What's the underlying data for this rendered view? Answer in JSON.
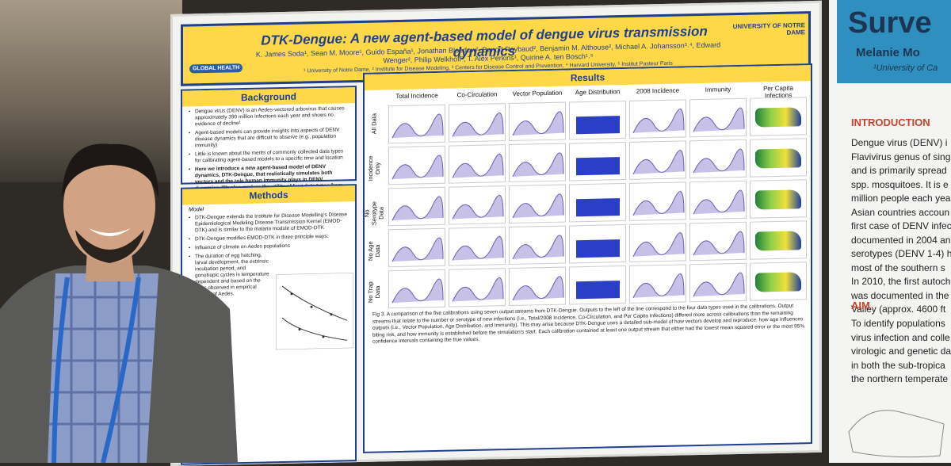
{
  "poster": {
    "title": "DTK-Dengue: A new agent-based model of dengue virus transmission dynamics",
    "authors": "K. James Soda¹, Sean M. Moore¹, Guido España¹, Jonathan Bloedow², Benoît Raybaud², Benjamin M. Althouse², Michael A. Johansson³˒⁴, Edward Wenger², Philip Welkhoff², T. Alex Perkins¹, Quirine A. ten Bosch¹˒⁵",
    "affiliations": "¹ University of Notre Dame, ² Institute for Disease Modeling, ³ Centers for Disease Control and Prevention, ⁴ Harvard University, ⁵ Institut Pasteur Paris",
    "logo_left": "GLOBAL HEALTH",
    "logo_right": "UNIVERSITY OF NOTRE DAME",
    "background": {
      "heading": "Background",
      "bullets": [
        "Dengue virus (DENV) is an Aedes-vectored arbovirus that causes approximately 390 million infections each year and shows no evidence of decline¹",
        "Agent-based models can provide insights into aspects of DENV disease dynamics that are difficult to observe (e.g., population immunity)",
        "Little is known about the merits of commonly collected data types for calibrating agent-based models to a specific time and location",
        "Here we introduce a new agent-based model of DENV dynamics, DTK-Dengue, that realistically simulates both vectors and the role human immunity plays in DENV dynamics. We also explore the utility of four data types from routine surveillance to calibrate the model."
      ]
    },
    "methods": {
      "heading": "Methods",
      "subheading": "Model",
      "bullets": [
        "DTK-Dengue extends the Institute for Disease Modelling's Disease Epidemiological Modeling Disease Transmission Kernel (EMOD-DTK) and is similar to the malaria module of EMOD-DTK",
        "DTK-Dengue modifies EMOD-DTK in three principle ways:",
        "Influence of climate on Aedes populations",
        "The duration of egg hatching, larval development, the extrinsic incubation period, and gonotropic cycles is temperature dependent and based on the rates observed in empirical studies of Aedes."
      ]
    },
    "results": {
      "heading": "Results",
      "columns": [
        "Total Incidence",
        "Co-Circulation",
        "Vector Population",
        "Age Distribution",
        "2008 Incidence",
        "Immunity",
        "Per Capita Infections"
      ],
      "rows": [
        "All Data",
        "Incidence Only",
        "No Serotype Data",
        "No Age Data",
        "No Trap Data"
      ],
      "caption": "Fig 3. A comparison of the five calibrations using seven output streams from DTK-Dengue. Outputs to the left of the line correspond to the four data types used in the calibrations. Output streams that relate to the number or serotype of new infections (i.e., Total/2008 Incidence, Co-Circulation, and Per Capita Infections) differed more across calibrations than the remaining outputs (i.e., Vector Population, Age Distribution, and Immunity). This may arise because DTK-Dengue uses a detailed sub-model of how vectors develop and reproduce, how age influences biting risk, and how immunity is established before the simulation's start. Each calibration contained at least one output stream that either had the lowest mean squared error or the most 95% confidence intervals containing the true values."
    }
  },
  "right_poster": {
    "title": "Surve",
    "author": "Melanie Mo",
    "affiliation": "¹University of Ca",
    "intro_heading": "INTRODUCTION",
    "intro_lines": [
      "Dengue virus (DENV) i",
      "Flavivirus genus of sing",
      "and is primarily spread",
      "spp. mosquitoes. It is e",
      "million people each yea",
      "Asian countries accoun",
      "first case of DENV infec",
      "documented in 2004 an",
      "serotypes (DENV 1-4) h",
      "most of the southern s",
      "In 2010, the first autoch",
      "was documented in the",
      "Valley (approx. 4600 ft"
    ],
    "aim_heading": "AIM",
    "aim_lines": [
      "To identify populations",
      "virus infection and colle",
      "virologic and genetic da",
      "in both the sub-tropica",
      "the northern temperate"
    ]
  }
}
